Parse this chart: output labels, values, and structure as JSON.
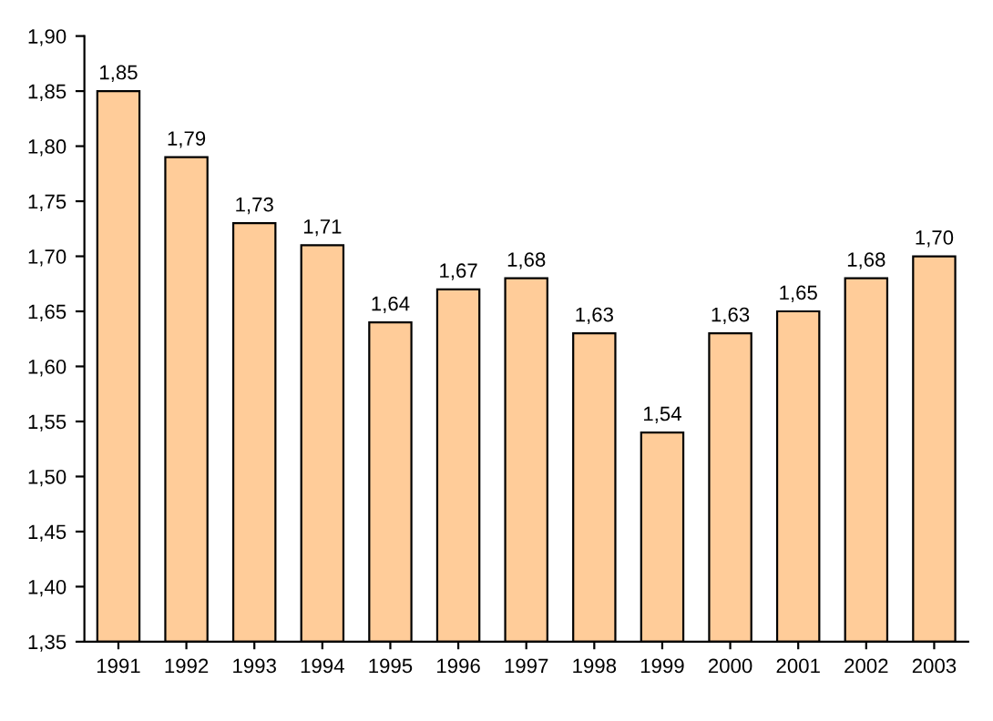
{
  "chart_data": {
    "type": "bar",
    "categories": [
      "1991",
      "1992",
      "1993",
      "1994",
      "1995",
      "1996",
      "1997",
      "1998",
      "1999",
      "2000",
      "2001",
      "2002",
      "2003"
    ],
    "values": [
      1.85,
      1.79,
      1.73,
      1.71,
      1.64,
      1.67,
      1.68,
      1.63,
      1.54,
      1.63,
      1.65,
      1.68,
      1.7
    ],
    "value_labels": [
      "1,85",
      "1,79",
      "1,73",
      "1,71",
      "1,64",
      "1,67",
      "1,68",
      "1,63",
      "1,54",
      "1,63",
      "1,65",
      "1,68",
      "1,70"
    ],
    "color": "#ffcc99",
    "ylim": [
      1.35,
      1.9
    ],
    "yticks": [
      {
        "value": 1.35,
        "label": "1,35"
      },
      {
        "value": 1.4,
        "label": "1,40"
      },
      {
        "value": 1.45,
        "label": "1,45"
      },
      {
        "value": 1.5,
        "label": "1,50"
      },
      {
        "value": 1.55,
        "label": "1,55"
      },
      {
        "value": 1.6,
        "label": "1,60"
      },
      {
        "value": 1.65,
        "label": "1,65"
      },
      {
        "value": 1.7,
        "label": "1,70"
      },
      {
        "value": 1.75,
        "label": "1,75"
      },
      {
        "value": 1.8,
        "label": "1,80"
      },
      {
        "value": 1.85,
        "label": "1,85"
      },
      {
        "value": 1.9,
        "label": "1,90"
      }
    ],
    "grid": false,
    "legend": false
  }
}
